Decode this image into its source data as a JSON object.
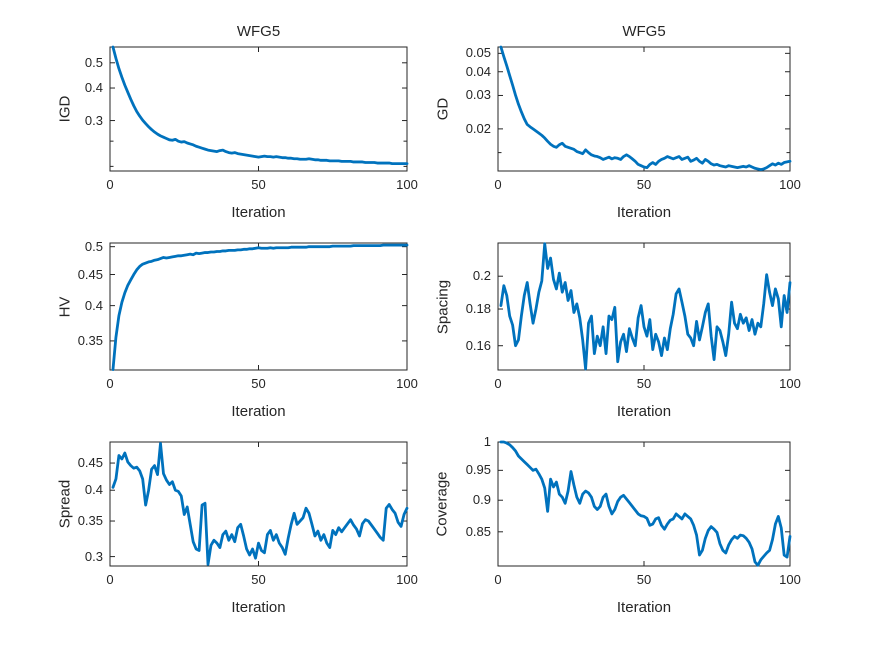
{
  "figure": {
    "background": "#FFFFFF",
    "line_color": "#0072BD",
    "axis_color": "#262626",
    "text_color": "#262626"
  },
  "chart_data": [
    {
      "id": "igd",
      "type": "line",
      "title": "WFG5",
      "xlabel": "Iteration",
      "ylabel": "IGD",
      "xlim": [
        0,
        100
      ],
      "xticks": [
        0,
        50,
        100
      ],
      "xtick_labels": [
        "0",
        "50",
        "100"
      ],
      "yscale": "log",
      "ylim": [
        0.192,
        0.575
      ],
      "yticks": [
        0.3,
        0.4,
        0.5
      ],
      "ytick_labels": [
        "0.3",
        "0.4",
        "0.5"
      ],
      "yticks_minor": [
        0.25,
        0.2
      ],
      "x_start": 1,
      "x_step": 1,
      "values": [
        0.575,
        0.52,
        0.475,
        0.44,
        0.41,
        0.385,
        0.362,
        0.342,
        0.325,
        0.312,
        0.301,
        0.292,
        0.284,
        0.277,
        0.271,
        0.266,
        0.262,
        0.259,
        0.256,
        0.253,
        0.252,
        0.254,
        0.25,
        0.248,
        0.249,
        0.246,
        0.244,
        0.242,
        0.239,
        0.237,
        0.235,
        0.233,
        0.231,
        0.23,
        0.229,
        0.228,
        0.23,
        0.231,
        0.228,
        0.226,
        0.225,
        0.226,
        0.224,
        0.223,
        0.222,
        0.221,
        0.22,
        0.219,
        0.218,
        0.217,
        0.218,
        0.219,
        0.218,
        0.218,
        0.217,
        0.218,
        0.217,
        0.216,
        0.216,
        0.215,
        0.215,
        0.214,
        0.214,
        0.213,
        0.213,
        0.213,
        0.214,
        0.213,
        0.212,
        0.212,
        0.211,
        0.211,
        0.211,
        0.21,
        0.21,
        0.21,
        0.21,
        0.209,
        0.209,
        0.209,
        0.209,
        0.208,
        0.208,
        0.208,
        0.208,
        0.207,
        0.207,
        0.207,
        0.207,
        0.206,
        0.206,
        0.206,
        0.206,
        0.206,
        0.205,
        0.205,
        0.205,
        0.205,
        0.205,
        0.205
      ]
    },
    {
      "id": "gd",
      "type": "line",
      "title": "WFG5",
      "xlabel": "Iteration",
      "ylabel": "GD",
      "xlim": [
        0,
        100
      ],
      "xticks": [
        0,
        50,
        100
      ],
      "xtick_labels": [
        "0",
        "50",
        "100"
      ],
      "yscale": "log",
      "ylim": [
        0.012,
        0.054
      ],
      "yticks": [
        0.02,
        0.03,
        0.04,
        0.05
      ],
      "ytick_labels": [
        "0.02",
        "0.03",
        "0.04",
        "0.05"
      ],
      "yticks_minor": [
        0.015
      ],
      "x_start": 1,
      "x_step": 1,
      "values": [
        0.054,
        0.048,
        0.043,
        0.0382,
        0.034,
        0.0301,
        0.027,
        0.0246,
        0.0226,
        0.0211,
        0.0205,
        0.02,
        0.0195,
        0.019,
        0.0185,
        0.0179,
        0.0172,
        0.0166,
        0.0162,
        0.016,
        0.0165,
        0.0168,
        0.0162,
        0.016,
        0.0158,
        0.0156,
        0.0152,
        0.015,
        0.0148,
        0.0155,
        0.015,
        0.0146,
        0.0144,
        0.0143,
        0.0141,
        0.0138,
        0.014,
        0.0142,
        0.0139,
        0.0141,
        0.014,
        0.0138,
        0.0143,
        0.0146,
        0.0143,
        0.0139,
        0.0135,
        0.013,
        0.0128,
        0.0126,
        0.0125,
        0.013,
        0.0133,
        0.013,
        0.0135,
        0.0138,
        0.014,
        0.0143,
        0.0141,
        0.0139,
        0.0141,
        0.0143,
        0.0138,
        0.014,
        0.0142,
        0.0135,
        0.0137,
        0.014,
        0.0135,
        0.0132,
        0.0138,
        0.0135,
        0.0131,
        0.0129,
        0.013,
        0.0128,
        0.0127,
        0.0126,
        0.0128,
        0.0127,
        0.0126,
        0.0125,
        0.0126,
        0.0127,
        0.0126,
        0.0128,
        0.0126,
        0.0124,
        0.0123,
        0.0122,
        0.0123,
        0.0125,
        0.0128,
        0.0131,
        0.0129,
        0.0132,
        0.013,
        0.0133,
        0.0134,
        0.0135
      ]
    },
    {
      "id": "hv",
      "type": "line",
      "title": "",
      "xlabel": "Iteration",
      "ylabel": "HV",
      "xlim": [
        0,
        100
      ],
      "xticks": [
        0,
        50,
        100
      ],
      "xtick_labels": [
        "0",
        "50",
        "100"
      ],
      "yscale": "log",
      "ylim": [
        0.3135,
        0.507
      ],
      "yticks": [
        0.35,
        0.4,
        0.45,
        0.5
      ],
      "ytick_labels": [
        "0.35",
        "0.4",
        "0.45",
        "0.5"
      ],
      "yticks_minor": [],
      "x_start": 1,
      "x_step": 1,
      "values": [
        0.314,
        0.355,
        0.385,
        0.405,
        0.42,
        0.432,
        0.441,
        0.45,
        0.458,
        0.464,
        0.468,
        0.47,
        0.472,
        0.473,
        0.475,
        0.476,
        0.478,
        0.48,
        0.479,
        0.48,
        0.481,
        0.482,
        0.483,
        0.483,
        0.484,
        0.485,
        0.486,
        0.485,
        0.488,
        0.487,
        0.488,
        0.489,
        0.489,
        0.49,
        0.49,
        0.491,
        0.491,
        0.492,
        0.492,
        0.493,
        0.493,
        0.493,
        0.494,
        0.494,
        0.495,
        0.495,
        0.496,
        0.496,
        0.497,
        0.498,
        0.497,
        0.497,
        0.497,
        0.498,
        0.497,
        0.498,
        0.498,
        0.498,
        0.498,
        0.498,
        0.499,
        0.499,
        0.499,
        0.499,
        0.499,
        0.499,
        0.5,
        0.5,
        0.5,
        0.5,
        0.5,
        0.5,
        0.5,
        0.5,
        0.501,
        0.501,
        0.501,
        0.501,
        0.501,
        0.501,
        0.501,
        0.502,
        0.502,
        0.502,
        0.502,
        0.502,
        0.502,
        0.502,
        0.502,
        0.502,
        0.502,
        0.503,
        0.503,
        0.503,
        0.503,
        0.503,
        0.503,
        0.503,
        0.503,
        0.503
      ]
    },
    {
      "id": "spacing",
      "type": "line",
      "title": "",
      "xlabel": "Iteration",
      "ylabel": "Spacing",
      "xlim": [
        0,
        100
      ],
      "xticks": [
        0,
        50,
        100
      ],
      "xtick_labels": [
        "0",
        "50",
        "100"
      ],
      "yscale": "log",
      "ylim": [
        0.148,
        0.2225
      ],
      "yticks": [
        0.16,
        0.18,
        0.2
      ],
      "ytick_labels": [
        "0.16",
        "0.18",
        "0.2"
      ],
      "yticks_minor": [],
      "x_start": 1,
      "x_step": 1,
      "values": [
        0.182,
        0.194,
        0.188,
        0.176,
        0.171,
        0.16,
        0.163,
        0.176,
        0.188,
        0.196,
        0.183,
        0.172,
        0.18,
        0.19,
        0.197,
        0.222,
        0.205,
        0.212,
        0.198,
        0.192,
        0.202,
        0.19,
        0.196,
        0.185,
        0.191,
        0.178,
        0.183,
        0.175,
        0.163,
        0.1485,
        0.172,
        0.176,
        0.156,
        0.165,
        0.16,
        0.17,
        0.156,
        0.176,
        0.174,
        0.181,
        0.152,
        0.162,
        0.166,
        0.157,
        0.169,
        0.164,
        0.16,
        0.175,
        0.182,
        0.17,
        0.165,
        0.174,
        0.158,
        0.166,
        0.162,
        0.155,
        0.164,
        0.158,
        0.169,
        0.177,
        0.189,
        0.192,
        0.184,
        0.176,
        0.166,
        0.164,
        0.16,
        0.173,
        0.163,
        0.17,
        0.178,
        0.183,
        0.165,
        0.153,
        0.17,
        0.168,
        0.162,
        0.155,
        0.166,
        0.184,
        0.172,
        0.169,
        0.177,
        0.172,
        0.175,
        0.168,
        0.174,
        0.166,
        0.172,
        0.17,
        0.183,
        0.201,
        0.19,
        0.182,
        0.192,
        0.186,
        0.17,
        0.188,
        0.178,
        0.196
      ]
    },
    {
      "id": "spread",
      "type": "line",
      "title": "",
      "xlabel": "Iteration",
      "ylabel": "Spread",
      "xlim": [
        0,
        100
      ],
      "xticks": [
        0,
        50,
        100
      ],
      "xtick_labels": [
        "0",
        "50",
        "100"
      ],
      "yscale": "log",
      "ylim": [
        0.288,
        0.493
      ],
      "yticks": [
        0.3,
        0.35,
        0.4,
        0.45
      ],
      "ytick_labels": [
        "0.3",
        "0.35",
        "0.4",
        "0.45"
      ],
      "yticks_minor": [],
      "x_start": 1,
      "x_step": 1,
      "values": [
        0.405,
        0.42,
        0.465,
        0.458,
        0.47,
        0.452,
        0.445,
        0.44,
        0.442,
        0.435,
        0.42,
        0.375,
        0.4,
        0.438,
        0.445,
        0.428,
        0.49,
        0.43,
        0.418,
        0.41,
        0.415,
        0.4,
        0.398,
        0.39,
        0.36,
        0.372,
        0.345,
        0.32,
        0.31,
        0.308,
        0.375,
        0.378,
        0.29,
        0.315,
        0.322,
        0.318,
        0.312,
        0.33,
        0.335,
        0.322,
        0.33,
        0.32,
        0.34,
        0.345,
        0.328,
        0.31,
        0.302,
        0.31,
        0.298,
        0.318,
        0.308,
        0.305,
        0.33,
        0.336,
        0.322,
        0.33,
        0.318,
        0.312,
        0.303,
        0.325,
        0.345,
        0.362,
        0.345,
        0.35,
        0.355,
        0.37,
        0.362,
        0.345,
        0.328,
        0.335,
        0.322,
        0.33,
        0.318,
        0.312,
        0.336,
        0.33,
        0.34,
        0.334,
        0.34,
        0.346,
        0.352,
        0.344,
        0.338,
        0.328,
        0.346,
        0.352,
        0.35,
        0.344,
        0.338,
        0.332,
        0.326,
        0.322,
        0.37,
        0.376,
        0.368,
        0.362,
        0.348,
        0.342,
        0.36,
        0.37
      ]
    },
    {
      "id": "coverage",
      "type": "line",
      "title": "",
      "xlabel": "Iteration",
      "ylabel": "Coverage",
      "xlim": [
        0,
        100
      ],
      "xticks": [
        0,
        50,
        100
      ],
      "xtick_labels": [
        "0",
        "50",
        "100"
      ],
      "yscale": "log",
      "ylim": [
        0.799,
        1.0
      ],
      "yticks": [
        0.85,
        0.9,
        0.95,
        1
      ],
      "ytick_labels": [
        "0.85",
        "0.9",
        "0.95",
        "1"
      ],
      "yticks_minor": [],
      "x_start": 1,
      "x_step": 1,
      "values": [
        1.0,
        1.0,
        0.998,
        0.995,
        0.99,
        0.984,
        0.975,
        0.97,
        0.965,
        0.96,
        0.955,
        0.95,
        0.952,
        0.944,
        0.935,
        0.92,
        0.882,
        0.935,
        0.922,
        0.93,
        0.91,
        0.905,
        0.895,
        0.915,
        0.948,
        0.925,
        0.905,
        0.895,
        0.91,
        0.915,
        0.912,
        0.905,
        0.89,
        0.885,
        0.89,
        0.905,
        0.91,
        0.89,
        0.878,
        0.885,
        0.898,
        0.905,
        0.908,
        0.902,
        0.896,
        0.89,
        0.884,
        0.878,
        0.875,
        0.874,
        0.871,
        0.86,
        0.862,
        0.87,
        0.872,
        0.86,
        0.854,
        0.862,
        0.868,
        0.87,
        0.878,
        0.874,
        0.87,
        0.878,
        0.874,
        0.87,
        0.86,
        0.845,
        0.815,
        0.822,
        0.84,
        0.852,
        0.858,
        0.854,
        0.849,
        0.832,
        0.822,
        0.818,
        0.83,
        0.838,
        0.843,
        0.84,
        0.845,
        0.844,
        0.84,
        0.834,
        0.824,
        0.805,
        0.8,
        0.808,
        0.813,
        0.818,
        0.822,
        0.838,
        0.862,
        0.874,
        0.856,
        0.815,
        0.812,
        0.843
      ]
    }
  ]
}
